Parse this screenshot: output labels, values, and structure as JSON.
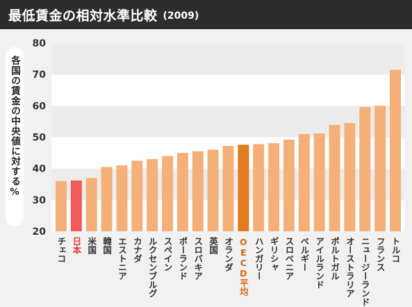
{
  "header": {
    "title": "最低賃金の相対水準比較",
    "subtitle": "(2009)"
  },
  "colors": {
    "bar_default": "#f5b07a",
    "bar_japan": "#f05a5a",
    "bar_oecd": "#e07b1e",
    "label_default": "#333333",
    "label_japan": "#e83a3a",
    "label_oecd": "#d46a10",
    "header_bg": "#2d2d2d",
    "background": "#f1f1f1"
  },
  "chart_data": {
    "type": "bar",
    "title": "最低賃金の相対水準比較",
    "subtitle": "(2009)",
    "ylabel": "各国の賃金の中央値に対する%",
    "xlabel": "",
    "ylim": [
      20,
      80
    ],
    "yticks": [
      20,
      30,
      40,
      50,
      60,
      70,
      80
    ],
    "grid": "horizontal-bands",
    "categories": [
      "チェコ",
      "日本",
      "米国",
      "韓国",
      "エストニア",
      "カナダ",
      "ルクセンブルグ",
      "スペイン",
      "ポーランド",
      "スロバキア",
      "英国",
      "オランダ",
      "OECD平均",
      "ハンガリー",
      "ギリシャ",
      "スロベニア",
      "ベルギー",
      "アイルランド",
      "ポルトガル",
      "オーストラリア",
      "ニュージーランド",
      "フランス",
      "トルコ"
    ],
    "values": [
      36,
      36.2,
      37,
      40.5,
      41,
      42.5,
      43,
      44,
      45,
      45.5,
      46,
      47.2,
      47.6,
      47.8,
      48.1,
      49.2,
      51,
      51.2,
      53.9,
      54.5,
      59.6,
      60,
      71.5
    ],
    "highlight": {
      "日本": "japan",
      "OECD平均": "oecd"
    }
  }
}
